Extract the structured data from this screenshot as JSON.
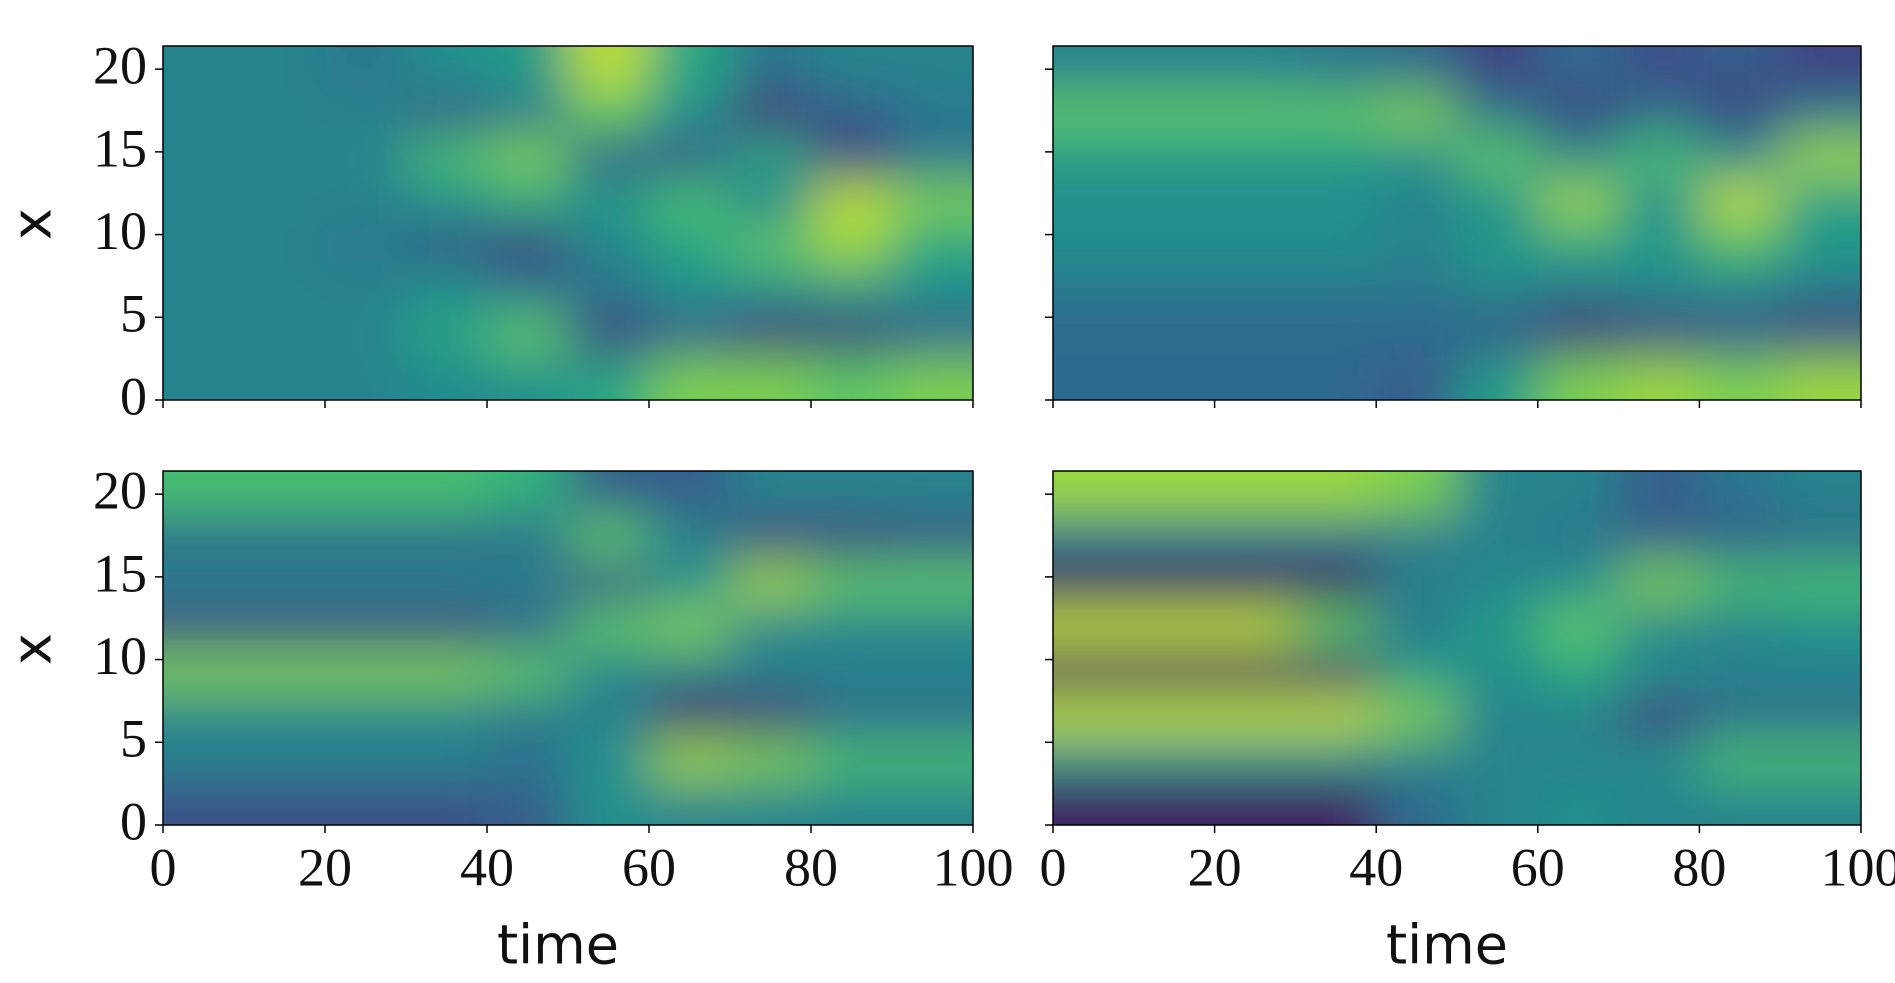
{
  "chart_data": [
    {
      "type": "heatmap",
      "ylabel": "x",
      "xlim": [
        0,
        100
      ],
      "ylim": [
        0,
        21.4
      ],
      "xticks": [
        0,
        20,
        40,
        60,
        80,
        100
      ],
      "yticks": [
        0,
        5,
        10,
        15,
        20
      ],
      "show_xticklabels": false,
      "show_yticklabels": true,
      "z": [
        [
          0.45,
          0.45,
          0.45,
          0.48,
          0.5,
          0.6,
          0.8,
          0.8,
          0.75,
          0.8
        ],
        [
          0.45,
          0.45,
          0.45,
          0.6,
          0.75,
          0.2,
          0.3,
          0.15,
          0.15,
          0.3
        ],
        [
          0.45,
          0.45,
          0.45,
          0.5,
          0.4,
          0.4,
          0.5,
          0.5,
          0.55,
          0.5
        ],
        [
          0.45,
          0.45,
          0.4,
          0.3,
          0.2,
          0.45,
          0.6,
          0.75,
          0.85,
          0.6
        ],
        [
          0.45,
          0.45,
          0.45,
          0.5,
          0.6,
          0.55,
          0.7,
          0.45,
          0.9,
          0.8
        ],
        [
          0.45,
          0.45,
          0.45,
          0.7,
          0.8,
          0.3,
          0.3,
          0.6,
          0.2,
          0.4
        ],
        [
          0.45,
          0.45,
          0.45,
          0.3,
          0.4,
          0.75,
          0.5,
          0.15,
          0.3,
          0.4
        ],
        [
          0.45,
          0.45,
          0.4,
          0.5,
          0.55,
          0.9,
          0.6,
          0.4,
          0.45,
          0.45
        ]
      ]
    },
    {
      "type": "heatmap",
      "xlim": [
        0,
        100
      ],
      "ylim": [
        0,
        21.4
      ],
      "xticks": [
        0,
        20,
        40,
        60,
        80,
        100
      ],
      "yticks": [
        0,
        5,
        10,
        15,
        20
      ],
      "show_xticklabels": false,
      "show_yticklabels": false,
      "z": [
        [
          0.35,
          0.35,
          0.35,
          0.35,
          0.3,
          0.55,
          0.8,
          0.85,
          0.8,
          0.85
        ],
        [
          0.35,
          0.35,
          0.35,
          0.35,
          0.35,
          0.3,
          0.15,
          0.2,
          0.25,
          0.2
        ],
        [
          0.4,
          0.4,
          0.4,
          0.4,
          0.4,
          0.45,
          0.4,
          0.45,
          0.45,
          0.4
        ],
        [
          0.5,
          0.5,
          0.5,
          0.5,
          0.45,
          0.55,
          0.6,
          0.55,
          0.7,
          0.55
        ],
        [
          0.5,
          0.5,
          0.5,
          0.5,
          0.45,
          0.5,
          0.85,
          0.5,
          0.9,
          0.55
        ],
        [
          0.55,
          0.55,
          0.55,
          0.55,
          0.5,
          0.75,
          0.5,
          0.7,
          0.5,
          0.85
        ],
        [
          0.75,
          0.75,
          0.75,
          0.75,
          0.8,
          0.4,
          0.2,
          0.35,
          0.2,
          0.4
        ],
        [
          0.45,
          0.45,
          0.45,
          0.4,
          0.35,
          0.2,
          0.35,
          0.25,
          0.3,
          0.2
        ]
      ]
    },
    {
      "type": "heatmap",
      "xlabel": "time",
      "ylabel": "x",
      "xlim": [
        0,
        100
      ],
      "ylim": [
        0,
        21.4
      ],
      "xticks": [
        0,
        20,
        40,
        60,
        80,
        100
      ],
      "yticks": [
        0,
        5,
        10,
        15,
        20
      ],
      "show_xticklabels": true,
      "show_yticklabels": true,
      "z": [
        [
          0.25,
          0.25,
          0.25,
          0.25,
          0.3,
          0.5,
          0.45,
          0.45,
          0.45,
          0.45
        ],
        [
          0.45,
          0.45,
          0.45,
          0.45,
          0.4,
          0.5,
          0.85,
          0.8,
          0.7,
          0.7
        ],
        [
          0.45,
          0.45,
          0.45,
          0.45,
          0.4,
          0.45,
          0.1,
          0.15,
          0.35,
          0.35
        ],
        [
          0.8,
          0.8,
          0.8,
          0.8,
          0.75,
          0.45,
          0.45,
          0.45,
          0.45,
          0.45
        ],
        [
          0.2,
          0.2,
          0.2,
          0.2,
          0.3,
          0.75,
          0.8,
          0.45,
          0.45,
          0.45
        ],
        [
          0.45,
          0.45,
          0.45,
          0.45,
          0.45,
          0.25,
          0.5,
          0.85,
          0.75,
          0.75
        ],
        [
          0.35,
          0.35,
          0.35,
          0.35,
          0.35,
          0.75,
          0.45,
          0.2,
          0.2,
          0.25
        ],
        [
          0.7,
          0.7,
          0.7,
          0.7,
          0.65,
          0.3,
          0.3,
          0.45,
          0.45,
          0.45
        ]
      ]
    },
    {
      "type": "heatmap",
      "xlabel": "time",
      "xlim": [
        0,
        100
      ],
      "ylim": [
        0,
        21.4
      ],
      "xticks": [
        0,
        20,
        40,
        60,
        80,
        100
      ],
      "yticks": [
        0,
        5,
        10,
        15,
        20
      ],
      "show_xticklabels": true,
      "show_yticklabels": false,
      "z": [
        [
          0.05,
          0.05,
          0.05,
          0.05,
          0.35,
          0.45,
          0.5,
          0.45,
          0.45,
          0.45
        ],
        [
          0.5,
          0.5,
          0.5,
          0.5,
          0.45,
          0.45,
          0.45,
          0.5,
          0.7,
          0.7
        ],
        [
          0.9,
          0.9,
          0.9,
          0.9,
          0.8,
          0.45,
          0.45,
          0.2,
          0.35,
          0.35
        ],
        [
          0.05,
          0.05,
          0.05,
          0.1,
          0.55,
          0.5,
          0.6,
          0.5,
          0.45,
          0.45
        ],
        [
          0.9,
          0.9,
          0.9,
          0.75,
          0.4,
          0.55,
          0.75,
          0.45,
          0.45,
          0.5
        ],
        [
          0.05,
          0.05,
          0.05,
          0.05,
          0.45,
          0.45,
          0.5,
          0.8,
          0.7,
          0.7
        ],
        [
          0.4,
          0.4,
          0.4,
          0.4,
          0.4,
          0.45,
          0.4,
          0.3,
          0.3,
          0.35
        ],
        [
          0.85,
          0.85,
          0.85,
          0.85,
          0.8,
          0.45,
          0.45,
          0.3,
          0.4,
          0.45
        ]
      ]
    }
  ]
}
